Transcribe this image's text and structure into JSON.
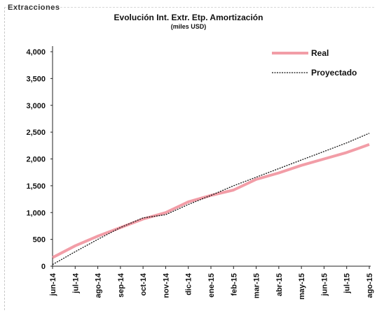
{
  "header": {
    "cut_text": "Extracciones",
    "title": "Evolución  Int. Extr. Etp. Amortización",
    "subtitle": "(miles USD)"
  },
  "chart_data": {
    "type": "line",
    "title": "Evolución  Int. Extr. Etp. Amortización",
    "subtitle": "(miles USD)",
    "xlabel": "",
    "ylabel": "",
    "categories": [
      "jun-14",
      "jul-14",
      "ago-14",
      "sep-14",
      "oct-14",
      "nov-14",
      "dic-14",
      "ene-15",
      "feb-15",
      "mar-15",
      "abr-15",
      "may-15",
      "jun-15",
      "jul-15",
      "ago-15"
    ],
    "ylim": [
      0,
      4000
    ],
    "yticks": [
      "0",
      "500",
      "1,000",
      "1,500",
      "2,000",
      "2,500",
      "3,000",
      "3,500",
      "4,000"
    ],
    "grid": false,
    "legend_position": "top-right",
    "series": [
      {
        "name": "Real",
        "color": "#f08c98",
        "style": "solid",
        "values": [
          160,
          380,
          560,
          720,
          880,
          1000,
          1200,
          1320,
          1420,
          1620,
          1740,
          1880,
          2000,
          2120,
          2270
        ]
      },
      {
        "name": "Proyectado",
        "color": "#111111",
        "style": "dotted",
        "values": [
          30,
          270,
          500,
          720,
          900,
          960,
          1150,
          1320,
          1500,
          1660,
          1820,
          1980,
          2140,
          2300,
          2480
        ]
      }
    ]
  }
}
